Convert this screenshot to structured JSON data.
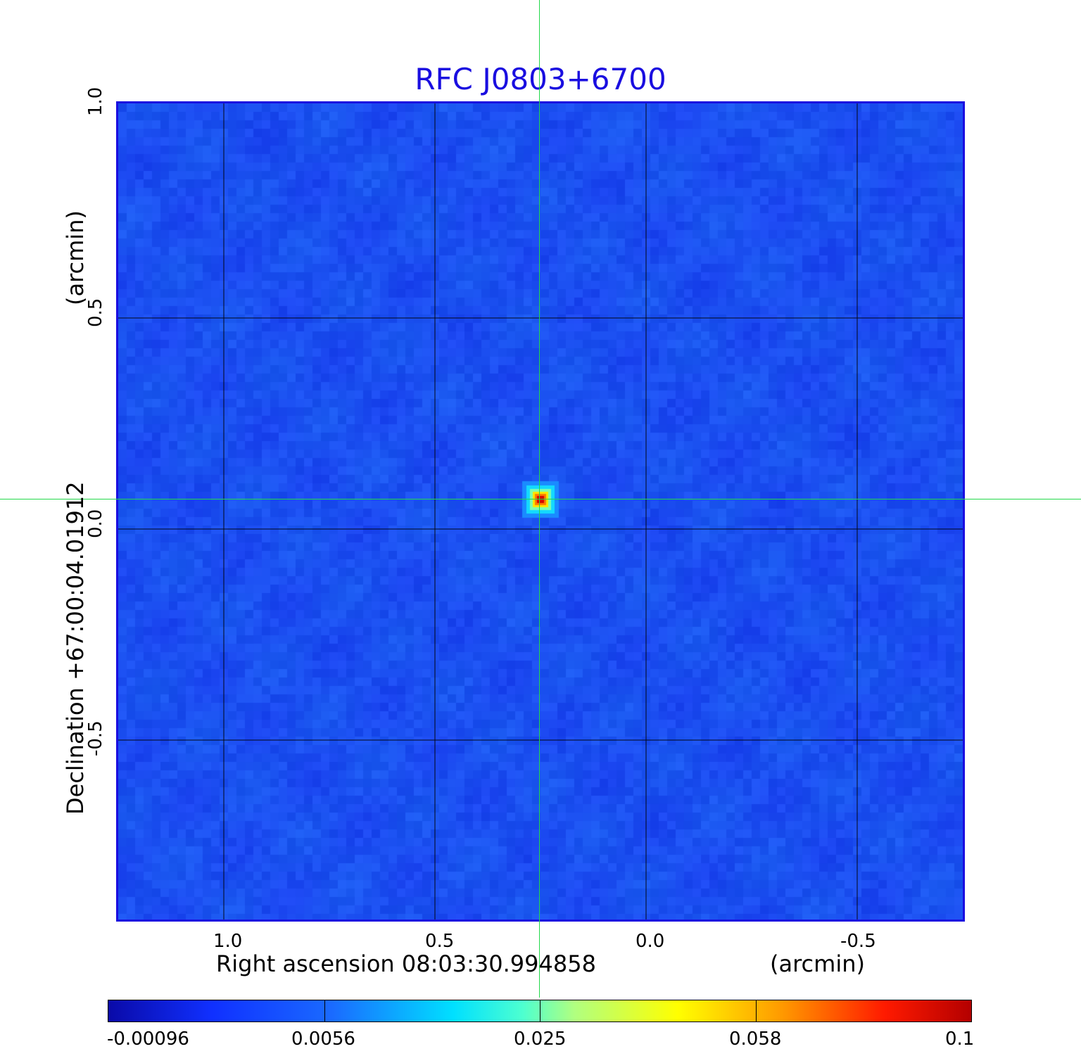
{
  "title": "RFC J0803+6700",
  "x_axis": {
    "label": "Right ascension  08:03:30.994858",
    "unit": "(arcmin)",
    "ticks": [
      "1.0",
      "0.5",
      "0.0",
      "-0.5"
    ]
  },
  "y_axis": {
    "label": "Declination  +67:00:04.01912",
    "unit": "(arcmin)",
    "ticks": [
      "1.0",
      "0.5",
      "0.0",
      "-0.5"
    ]
  },
  "colorbar": {
    "ticks": [
      "-0.00096",
      "0.0056",
      "0.025",
      "0.058",
      "0.1"
    ],
    "colors": [
      "#0a0aa8",
      "#1030ff",
      "#00e0ff",
      "#ffff00",
      "#ff1a00",
      "#b40000"
    ]
  },
  "source": {
    "ra_offset_arcmin": 0.25,
    "dec_offset_arcmin": 0.07,
    "peak": 0.1
  },
  "colors": {
    "title": "#1a0ee0",
    "background_map": "#1d4df2",
    "grid": "#000000",
    "crosshair": "#22d84a"
  }
}
